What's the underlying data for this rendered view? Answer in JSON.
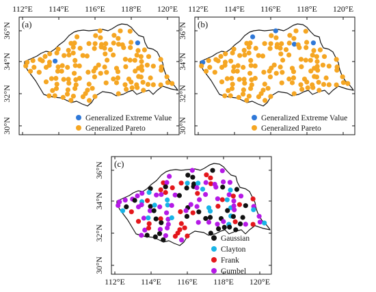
{
  "panels": [
    {
      "label": "(a)",
      "x_ticks": [
        "112°E",
        "114°E",
        "116°E",
        "118°E",
        "120°E"
      ],
      "y_ticks": [
        "36°N",
        "34°N",
        "32°N",
        "30°N"
      ],
      "legend": [
        {
          "label": "Generalized Extreme Value",
          "color": "#2f78d8"
        },
        {
          "label": "Generalized Pareto",
          "color": "#f5a623"
        }
      ]
    },
    {
      "label": "(b)",
      "x_ticks": [
        "112°E",
        "114°E",
        "116°E",
        "118°E",
        "120°E"
      ],
      "y_ticks": [
        "36°N",
        "34°N",
        "32°N",
        "30°N"
      ],
      "legend": [
        {
          "label": "Generalized Extreme Value",
          "color": "#2f78d8"
        },
        {
          "label": "Generalized Pareto",
          "color": "#f5a623"
        }
      ]
    },
    {
      "label": "(c)",
      "x_ticks": [
        "112°E",
        "114°E",
        "116°E",
        "118°E",
        "120°E"
      ],
      "y_ticks": [
        "36°N",
        "34°N",
        "32°N",
        "30°N"
      ],
      "legend": [
        {
          "label": "Gaussian",
          "color": "#111111"
        },
        {
          "label": "Clayton",
          "color": "#18b4e6"
        },
        {
          "label": "Frank",
          "color": "#e4161b"
        },
        {
          "label": "Gumbel",
          "color": "#b519e6"
        }
      ]
    }
  ]
}
